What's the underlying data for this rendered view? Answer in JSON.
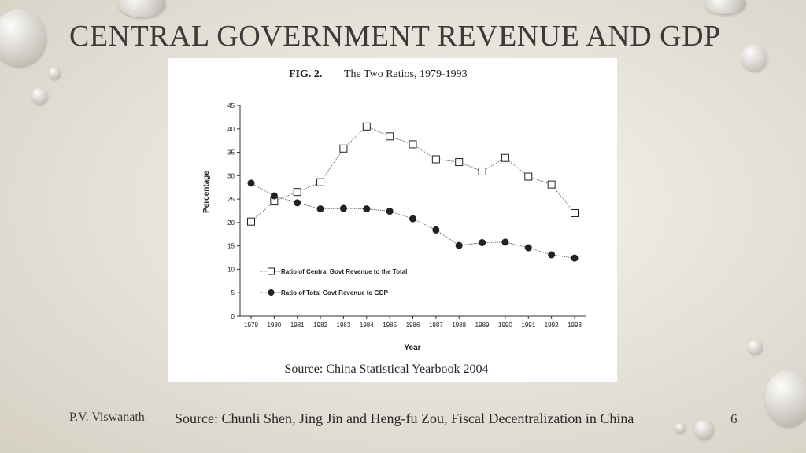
{
  "slide": {
    "title": "CENTRAL GOVERNMENT REVENUE AND GDP",
    "author": "P.V. Viswanath",
    "source": "Source: Chunli Shen, Jing Jin and Heng-fu Zou, Fiscal Decentralization in China",
    "page_number": "6"
  },
  "colors": {
    "title": "#3a3a3a",
    "panel_bg": "#ffffff",
    "line": "#555555"
  },
  "chart_data": {
    "type": "line",
    "fig_label": "FIG. 2.",
    "title": "The Two Ratios, 1979-1993",
    "xlabel": "Year",
    "ylabel": "Percentage",
    "ylim": [
      0,
      45
    ],
    "yticks": [
      "0",
      "5",
      "10",
      "15",
      "20",
      "25",
      "30",
      "35",
      "40",
      "45"
    ],
    "categories": [
      "1979",
      "1980",
      "1981",
      "1982",
      "1983",
      "1984",
      "1985",
      "1986",
      "1987",
      "1988",
      "1989",
      "1990",
      "1991",
      "1992",
      "1993"
    ],
    "series": [
      {
        "name": "Ratio of Central Govt Revenue to the Total",
        "marker": "open-square",
        "values": [
          20.2,
          24.5,
          26.5,
          28.6,
          35.8,
          40.5,
          38.4,
          36.7,
          33.5,
          32.9,
          30.9,
          33.8,
          29.8,
          28.1,
          22.0
        ]
      },
      {
        "name": "Ratio of Total Govt Revenue to GDP",
        "marker": "filled-circle",
        "values": [
          28.4,
          25.7,
          24.2,
          22.9,
          23.0,
          22.9,
          22.4,
          20.8,
          18.4,
          15.1,
          15.7,
          15.8,
          14.6,
          13.1,
          12.4
        ]
      }
    ],
    "legend_position": "lower-left",
    "source": "Source:  China Statistical Yearbook 2004"
  }
}
